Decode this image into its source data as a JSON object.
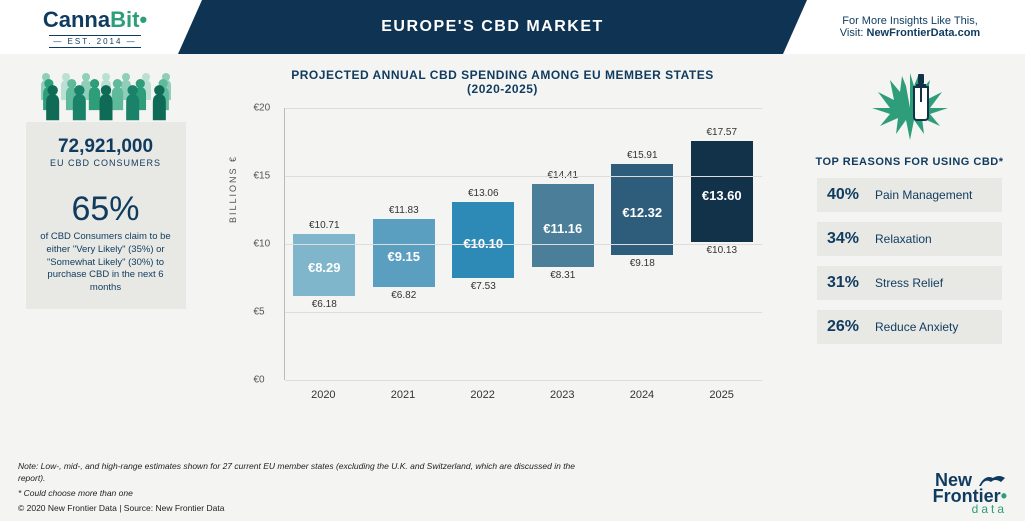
{
  "header": {
    "logo_main": "Canna",
    "logo_accent": "Bit",
    "logo_est": "— EST. 2014 —",
    "title": "EUROPE'S CBD MARKET",
    "insight_line1": "For More Insights Like This,",
    "insight_line2_pre": "Visit: ",
    "insight_link": "NewFrontierData.com"
  },
  "left": {
    "people_colors": [
      "#0f6b55",
      "#1a8268",
      "#2e9d7a",
      "#5fb99b",
      "#8fcfb9",
      "#b9e0d2"
    ],
    "consumers_num": "72,921,000",
    "consumers_label": "EU CBD CONSUMERS",
    "pct": "65%",
    "pct_desc": "of CBD Consumers claim to be either \"Very Likely\" (35%) or \"Somewhat Likely\" (30%) to purchase CBD in the next 6 months"
  },
  "chart": {
    "title_l1": "PROJECTED ANNUAL CBD SPENDING AMONG EU MEMBER STATES",
    "title_l2": "(2020-2025)",
    "y_axis_label": "BILLIONS €",
    "currency": "€",
    "y_max": 20,
    "y_ticks": [
      0,
      5,
      10,
      15,
      20
    ],
    "categories": [
      "2020",
      "2021",
      "2022",
      "2023",
      "2024",
      "2025"
    ],
    "low": [
      6.18,
      6.82,
      7.53,
      8.31,
      9.18,
      10.13
    ],
    "mid": [
      8.29,
      9.15,
      10.1,
      11.16,
      12.32,
      13.6
    ],
    "high": [
      10.71,
      11.83,
      13.06,
      14.41,
      15.91,
      17.57
    ],
    "bar_colors": [
      "#7fb6cc",
      "#5a9fc0",
      "#2d89b5",
      "#4b7f99",
      "#2e5d7b",
      "#123249"
    ],
    "background": "#ffffff",
    "grid_color": "#dddddd",
    "tick_color": "#555555",
    "mid_label_color": "#ffffff",
    "mid_label_fontsize": 13,
    "ext_label_fontsize": 10
  },
  "right": {
    "title": "TOP REASONS FOR USING CBD*",
    "leaf_color": "#2e9d7a",
    "bottle_color": "#123249",
    "reasons": [
      {
        "pct": "40%",
        "label": "Pain Management"
      },
      {
        "pct": "34%",
        "label": "Relaxation"
      },
      {
        "pct": "31%",
        "label": "Stress Relief"
      },
      {
        "pct": "26%",
        "label": "Reduce Anxiety"
      }
    ],
    "row_bg": "#e8e8e4"
  },
  "footer": {
    "note1": "Note: Low-, mid-, and high-range estimates shown for 27 current EU member states (excluding the U.K. and Switzerland, which are discussed in the report).",
    "note2": "* Could choose more than one",
    "copyright": "© 2020  New Frontier Data | Source: New Frontier Data",
    "nf_top": "New",
    "nf_mid": "Frontier",
    "nf_bot": "data"
  }
}
